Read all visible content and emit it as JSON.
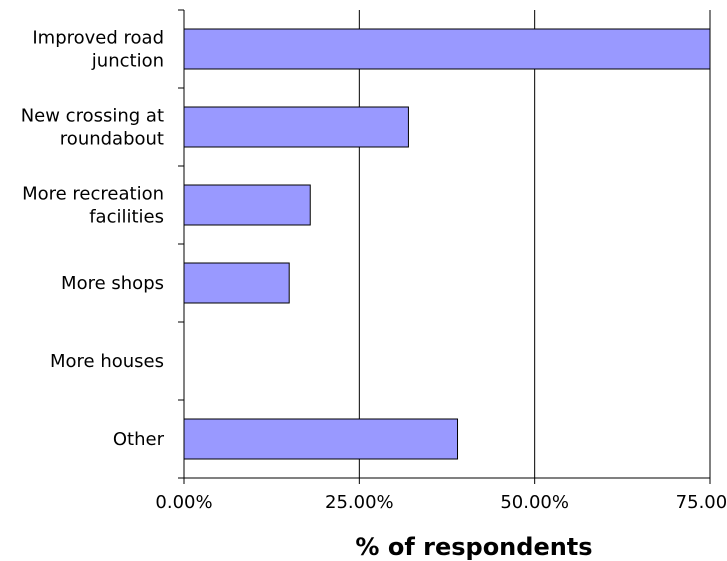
{
  "chart_data": {
    "type": "bar",
    "orientation": "horizontal",
    "categories": [
      [
        "Improved road",
        "junction"
      ],
      [
        "New crossing at",
        "roundabout"
      ],
      [
        "More recreation",
        "facilities"
      ],
      [
        "More shops"
      ],
      [
        "More houses"
      ],
      [
        "Other"
      ]
    ],
    "values": [
      75,
      32,
      18,
      15,
      0,
      39
    ],
    "title": "",
    "xlabel": "% of respondents",
    "ylabel": "",
    "xlim": [
      0,
      75
    ],
    "x_ticks": [
      0,
      25,
      50,
      75
    ],
    "x_tick_labels": [
      "0.00%",
      "25.00%",
      "50.00%",
      "75.00%"
    ],
    "grid": "vertical",
    "legend": "none",
    "colors": {
      "bar_fill": "#9999ff",
      "bar_stroke": "#000000",
      "grid": "#000000",
      "axis": "#000000"
    }
  }
}
